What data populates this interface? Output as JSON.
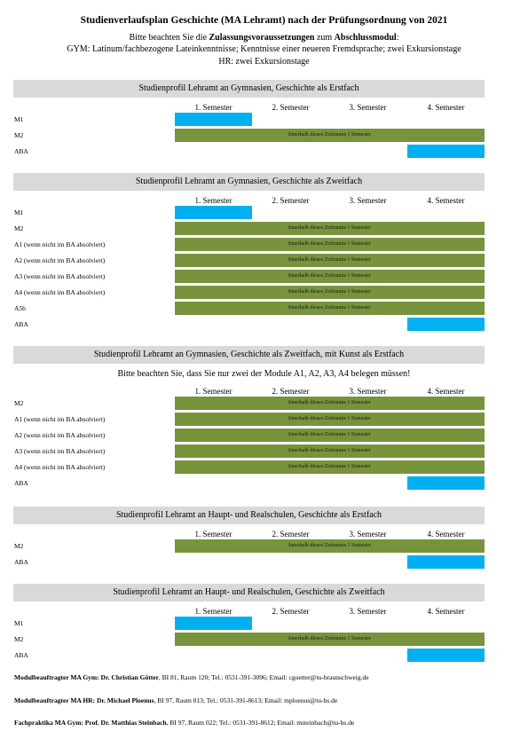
{
  "header": {
    "title": "Studienverlaufsplan Geschichte (MA Lehramt) nach der Prüfungsordnung von 2021",
    "notice": [
      "Bitte beachten Sie die ",
      "Zulassungsvoraussetzungen",
      " zum ",
      "Abschlussmodul",
      ":"
    ],
    "requirements": [
      "GYM: Latinum/fachbezogene Lateinkenntnisse; Kenntnisse einer neueren Fremdsprache; zwei Exkursionstage",
      "HR: zwei Exkursionstage"
    ]
  },
  "sections": [
    {
      "title": "Studienprofil Lehramt an Gymnasien, Geschichte als Erstfach",
      "semesters": [
        "1. Semester",
        "2. Semester",
        "3. Semester",
        "4. Semester"
      ],
      "rows": [
        {
          "label": "M1"
        },
        {
          "label": "M2",
          "bar_text": "Innerhalb dieses Zeitraums 1 Semester"
        },
        {
          "label": "ABA"
        }
      ]
    },
    {
      "title": "Studienprofil Lehramt an Gymnasien, Geschichte als Zweitfach",
      "semesters": [
        "1. Semester",
        "2. Semester",
        "3. Semester",
        "4. Semester"
      ],
      "rows": [
        {
          "label": "M1"
        },
        {
          "label": "M2",
          "bar_text": "Innerhalb dieses Zeitraums 1 Semester"
        },
        {
          "label": "A1 (wenn nicht im BA absolviert)",
          "bar_text": "Innerhalb dieses Zeitraums 1 Semester"
        },
        {
          "label": "A2 (wenn nicht im BA absolviert)",
          "bar_text": "Innerhalb dieses Zeitraums 1 Semester"
        },
        {
          "label": "A3 (wenn nicht im BA absolviert)",
          "bar_text": "Innerhalb dieses Zeitraums 1 Semester"
        },
        {
          "label": "A4 (wenn nicht im BA absolviert)",
          "bar_text": "Innerhalb dieses Zeitraums 1 Semester"
        },
        {
          "label": "A5b",
          "bar_text": "Innerhalb dieses Zeitraums 1 Semester"
        },
        {
          "label": "ABA"
        }
      ]
    },
    {
      "title": "Studienprofil Lehramt an Gymnasien, Geschichte als Zweitfach, mit Kunst als Erstfach",
      "note": "Bitte beachten Sie, dass Sie nur zwei der Module A1, A2, A3, A4 belegen müssen!",
      "semesters": [
        "1. Semester",
        "2. Semester",
        "3. Semester",
        "4. Semester"
      ],
      "rows": [
        {
          "label": "M2",
          "bar_text": "Innerhalb dieses Zeitraums 1 Semester"
        },
        {
          "label": "A1 (wenn nicht im BA absolviert)",
          "bar_text": "Innerhalb dieses Zeitraums 1 Semester"
        },
        {
          "label": "A2 (wenn nicht im BA absolviert)",
          "bar_text": "Innerhalb dieses Zeitraums 1 Semester"
        },
        {
          "label": "A3 (wenn nicht im BA absolviert)",
          "bar_text": "Innerhalb dieses Zeitraums 1 Semester"
        },
        {
          "label": "A4 (wenn nicht im BA absolviert)",
          "bar_text": "Innerhalb dieses Zeitraums 1 Semester"
        },
        {
          "label": "ABA"
        }
      ]
    },
    {
      "title": "Studienprofil Lehramt an Haupt- und Realschulen, Geschichte als Erstfach",
      "semesters": [
        "1. Semester",
        "2. Semester",
        "3. Semester",
        "4. Semester"
      ],
      "rows": [
        {
          "label": "M2",
          "bar_text": "Innerhalb dieses Zeitraums 1 Semester"
        },
        {
          "label": "ABA"
        }
      ]
    },
    {
      "title": "Studienprofil Lehramt an Haupt- und Realschulen, Geschichte als Zweitfach",
      "semesters": [
        "1. Semester",
        "2. Semester",
        "3. Semester",
        "4. Semester"
      ],
      "rows": [
        {
          "label": "M1"
        },
        {
          "label": "M2",
          "bar_text": "Innerhalb dieses Zeitraums 1 Semester"
        },
        {
          "label": "ABA"
        }
      ]
    }
  ],
  "contacts": [
    {
      "role": "Modulbeauftragter MA Gym: Dr. Christian Götter",
      "details": ", BI 81, Raum 120; Tel.: 0531-391-3096; Email: cgoetter@tu-braunschweig.de"
    },
    {
      "role": "Modulbeauftragter MA HR: Dr. Michael Ploenus",
      "details": ", BI 97, Raum 013; Tel.: 0531-391-8613; Email: mploenus@tu-bs.de"
    },
    {
      "role": "Fachpraktika MA Gym: Prof. Dr. Matthias Steinbach",
      "details": ", BI 97, Raum 022; Tel.: 0531-391-8612; Email: msteinbach@tu-bs.de"
    }
  ]
}
